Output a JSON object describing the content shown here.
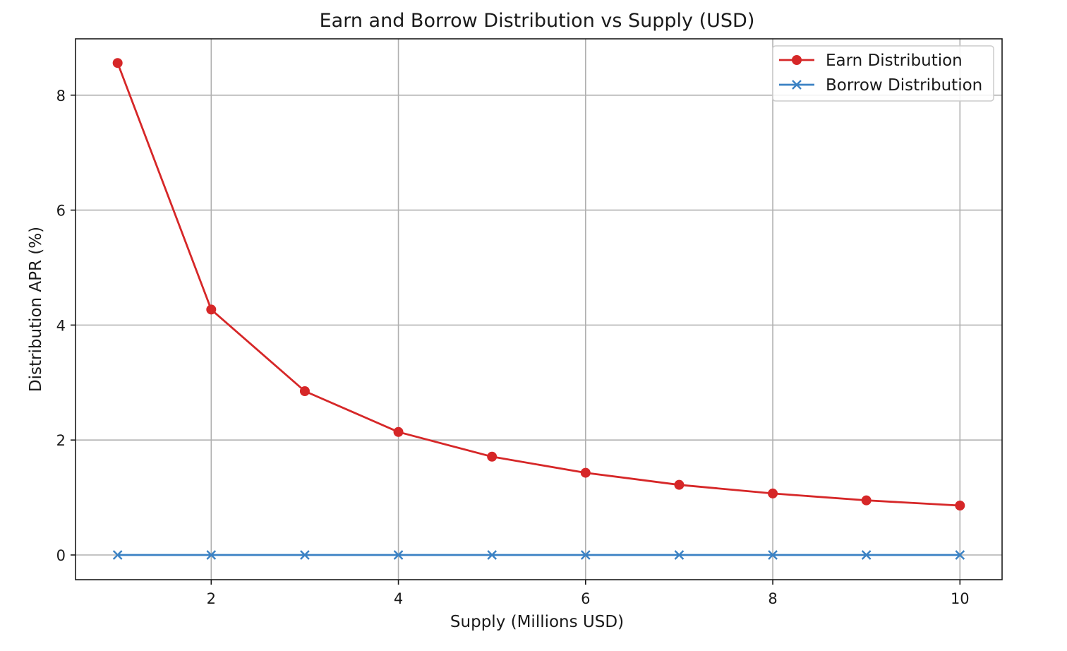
{
  "chart_data": {
    "type": "line",
    "title": "Earn and Borrow Distribution vs Supply (USD)",
    "xlabel": "Supply (Millions USD)",
    "ylabel": "Distribution APR (%)",
    "x": [
      1,
      2,
      3,
      4,
      5,
      6,
      7,
      8,
      9,
      10
    ],
    "xlim": [
      0.55,
      10.45
    ],
    "ylim": [
      -0.43,
      8.98
    ],
    "xticks": [
      2,
      4,
      6,
      8,
      10
    ],
    "yticks": [
      0,
      2,
      4,
      6,
      8
    ],
    "grid": true,
    "legend_position": "upper right",
    "series": [
      {
        "name": "Earn Distribution",
        "color": "#d62728",
        "marker": "circle",
        "values": [
          8.56,
          4.27,
          2.85,
          2.14,
          1.71,
          1.43,
          1.22,
          1.07,
          0.95,
          0.86
        ]
      },
      {
        "name": "Borrow Distribution",
        "color": "#3b82c4",
        "marker": "x",
        "values": [
          0,
          0,
          0,
          0,
          0,
          0,
          0,
          0,
          0,
          0
        ]
      }
    ]
  }
}
